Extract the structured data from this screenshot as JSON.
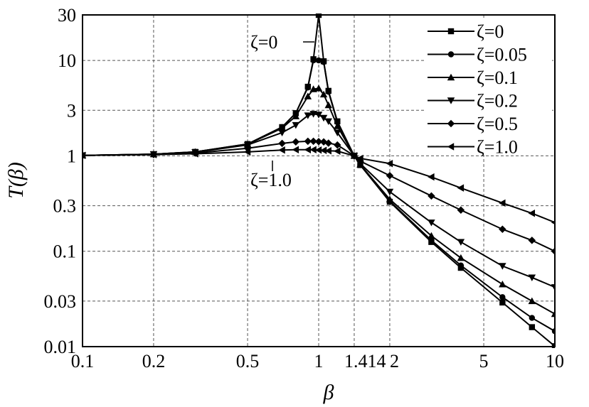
{
  "chart_data": {
    "type": "line",
    "x_scale": "log",
    "y_scale": "log",
    "xlim": [
      0.1,
      10
    ],
    "ylim": [
      0.01,
      30
    ],
    "xlabel": "β",
    "ylabel": "T(β)",
    "grid": true,
    "legend_placement": "top-right",
    "x_ticks": [
      {
        "value": 0.1,
        "label": "0.1"
      },
      {
        "value": 0.2,
        "label": "0.2"
      },
      {
        "value": 0.5,
        "label": "0.5"
      },
      {
        "value": 1,
        "label": "1"
      },
      {
        "value": 1.414,
        "label": "1.414"
      },
      {
        "value": 2,
        "label": "2"
      },
      {
        "value": 5,
        "label": "5"
      },
      {
        "value": 10,
        "label": "10"
      }
    ],
    "y_ticks": [
      {
        "value": 0.01,
        "label": "0.01"
      },
      {
        "value": 0.03,
        "label": "0.03"
      },
      {
        "value": 0.1,
        "label": "0.1"
      },
      {
        "value": 0.3,
        "label": "0.3"
      },
      {
        "value": 1,
        "label": "1"
      },
      {
        "value": 3,
        "label": "3"
      },
      {
        "value": 10,
        "label": "10"
      },
      {
        "value": 30,
        "label": "30"
      }
    ],
    "series": [
      {
        "name": "ζ=0",
        "marker": "square",
        "x": [
          0.1,
          0.2,
          0.3,
          0.5,
          0.7,
          0.8,
          0.9,
          0.95,
          1.0,
          1.05,
          1.1,
          1.2,
          1.414,
          1.5,
          2,
          3,
          4,
          6,
          8,
          10
        ],
        "y": [
          1.01,
          1.04,
          1.1,
          1.33,
          2.0,
          2.8,
          5.3,
          10.3,
          30,
          9.8,
          4.8,
          2.3,
          1.0,
          0.8,
          0.33,
          0.125,
          0.067,
          0.029,
          0.016,
          0.0101
        ]
      },
      {
        "name": "ζ=0.05",
        "marker": "circle",
        "x": [
          0.1,
          0.2,
          0.3,
          0.5,
          0.7,
          0.8,
          0.9,
          0.95,
          1.0,
          1.05,
          1.1,
          1.2,
          1.414,
          1.5,
          2,
          3,
          4,
          6,
          8,
          10
        ],
        "y": [
          1.01,
          1.04,
          1.1,
          1.33,
          2.0,
          2.8,
          5.2,
          10.0,
          10.0,
          9.6,
          4.7,
          2.25,
          1.0,
          0.8,
          0.335,
          0.13,
          0.071,
          0.033,
          0.02,
          0.0145
        ]
      },
      {
        "name": "ζ=0.1",
        "marker": "triangle-up",
        "x": [
          0.1,
          0.2,
          0.3,
          0.5,
          0.7,
          0.8,
          0.9,
          0.95,
          1.0,
          1.05,
          1.1,
          1.2,
          1.414,
          1.5,
          2,
          3,
          4,
          6,
          8,
          10
        ],
        "y": [
          1.01,
          1.04,
          1.1,
          1.32,
          1.95,
          2.6,
          4.2,
          5.0,
          5.1,
          4.4,
          3.4,
          2.05,
          1.0,
          0.81,
          0.35,
          0.145,
          0.085,
          0.045,
          0.03,
          0.022
        ]
      },
      {
        "name": "ζ=0.2",
        "marker": "triangle-down",
        "x": [
          0.1,
          0.2,
          0.3,
          0.5,
          0.7,
          0.8,
          0.9,
          0.95,
          1.0,
          1.05,
          1.1,
          1.2,
          1.414,
          1.5,
          2,
          3,
          4,
          6,
          8,
          10
        ],
        "y": [
          1.01,
          1.04,
          1.09,
          1.3,
          1.75,
          2.1,
          2.65,
          2.75,
          2.7,
          2.5,
          2.3,
          1.75,
          1.0,
          0.83,
          0.42,
          0.2,
          0.125,
          0.07,
          0.053,
          0.042
        ]
      },
      {
        "name": "ζ=0.5",
        "marker": "diamond",
        "x": [
          0.1,
          0.2,
          0.3,
          0.5,
          0.7,
          0.8,
          0.9,
          0.95,
          1.0,
          1.05,
          1.1,
          1.2,
          1.414,
          1.5,
          2,
          3,
          4,
          6,
          8,
          10
        ],
        "y": [
          1.01,
          1.03,
          1.07,
          1.2,
          1.35,
          1.4,
          1.42,
          1.42,
          1.41,
          1.4,
          1.36,
          1.3,
          1.0,
          0.88,
          0.62,
          0.38,
          0.27,
          0.17,
          0.13,
          0.1
        ]
      },
      {
        "name": "ζ=1.0",
        "marker": "triangle-left",
        "x": [
          0.1,
          0.2,
          0.3,
          0.5,
          0.7,
          0.8,
          0.9,
          0.95,
          1.0,
          1.05,
          1.1,
          1.2,
          1.414,
          1.5,
          2,
          3,
          4,
          6,
          8,
          10
        ],
        "y": [
          1.01,
          1.03,
          1.05,
          1.1,
          1.15,
          1.16,
          1.16,
          1.16,
          1.15,
          1.14,
          1.13,
          1.12,
          1.0,
          0.94,
          0.83,
          0.6,
          0.46,
          0.32,
          0.25,
          0.2
        ]
      }
    ],
    "annotations": [
      {
        "text": "ζ=0",
        "anchor_x": 1.0,
        "anchor_y": 22
      },
      {
        "text": "ζ=1.0",
        "anchor_x": 0.6,
        "anchor_y": 1.16
      }
    ]
  }
}
